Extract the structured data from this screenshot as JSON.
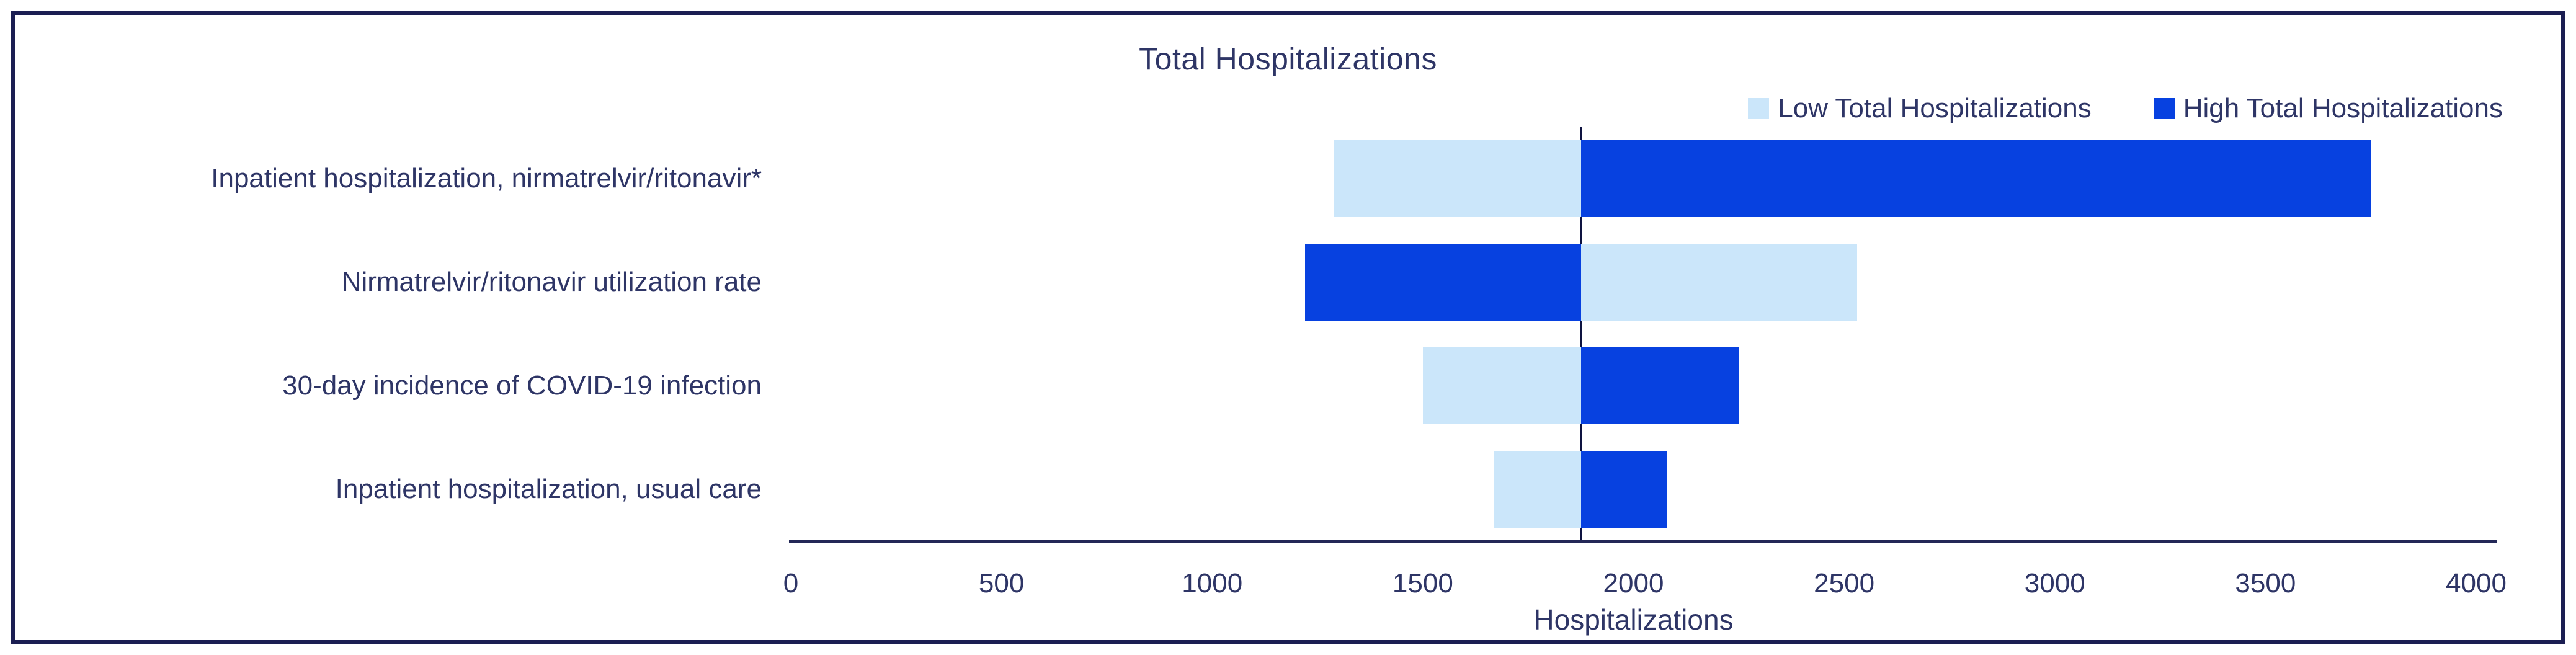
{
  "figure": {
    "background": "#ffffff",
    "border_color": "#1b1e52",
    "text_color": "#2e3566",
    "axis_color": "#232857",
    "baseline_color": "#0e1340"
  },
  "chart_data": {
    "type": "bar",
    "subtype": "tornado",
    "orientation": "horizontal",
    "title": "Total Hospitalizations",
    "xlabel": "Hospitalizations",
    "ylabel": "",
    "xlim": [
      0,
      4000
    ],
    "xticks": [
      0,
      500,
      1000,
      1500,
      2000,
      2500,
      3000,
      3500,
      4000
    ],
    "baseline": 1875,
    "grid": false,
    "legend_position": "top-right",
    "categories": [
      "Inpatient hospitalization, nirmatrelvir/ritonavir*",
      "Nirmatrelvir/ritonavir utilization rate",
      "30-day incidence of COVID-19 infection",
      "Inpatient hospitalization, usual care"
    ],
    "series": [
      {
        "name": "Low Total Hospitalizations",
        "color": "#cbe6fa",
        "values": [
          1290,
          2530,
          1500,
          1670
        ]
      },
      {
        "name": "High Total Hospitalizations",
        "color": "#0741e0",
        "values": [
          3750,
          1220,
          2250,
          2080
        ]
      }
    ]
  }
}
